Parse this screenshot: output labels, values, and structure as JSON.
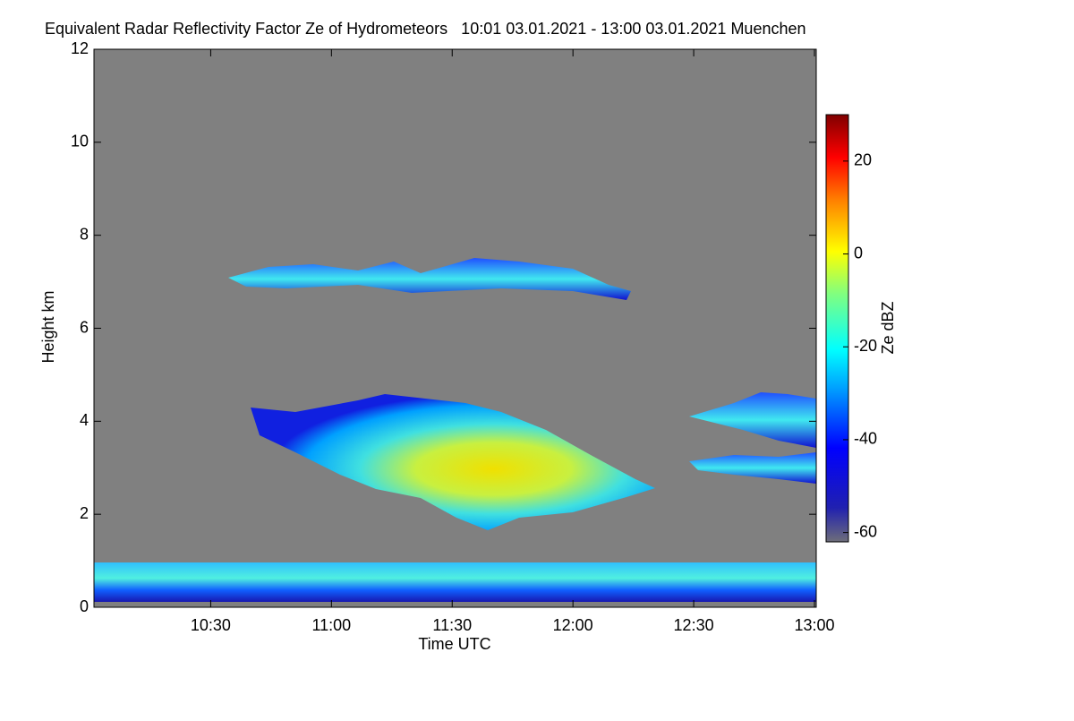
{
  "chart_data": {
    "type": "heatmap",
    "title": "Equivalent Radar Reflectivity Factor Ze of Hydrometeors   10:01 03.01.2021 - 13:00 03.01.2021 Muenchen",
    "x_label": "Time UTC",
    "y_label": "Height km",
    "colorbar_label": "Ze dBZ",
    "xlim": [
      601,
      780
    ],
    "xticks": [
      {
        "value": 630,
        "label": "10:30"
      },
      {
        "value": 660,
        "label": "11:00"
      },
      {
        "value": 690,
        "label": "11:30"
      },
      {
        "value": 720,
        "label": "12:00"
      },
      {
        "value": 750,
        "label": "12:30"
      },
      {
        "value": 780,
        "label": "13:00"
      }
    ],
    "ylim": [
      0,
      12
    ],
    "yticks": [
      0,
      2,
      4,
      6,
      8,
      10,
      12
    ],
    "clim": [
      -62,
      30
    ],
    "cticks": [
      -60,
      -40,
      -20,
      0,
      20
    ]
  }
}
